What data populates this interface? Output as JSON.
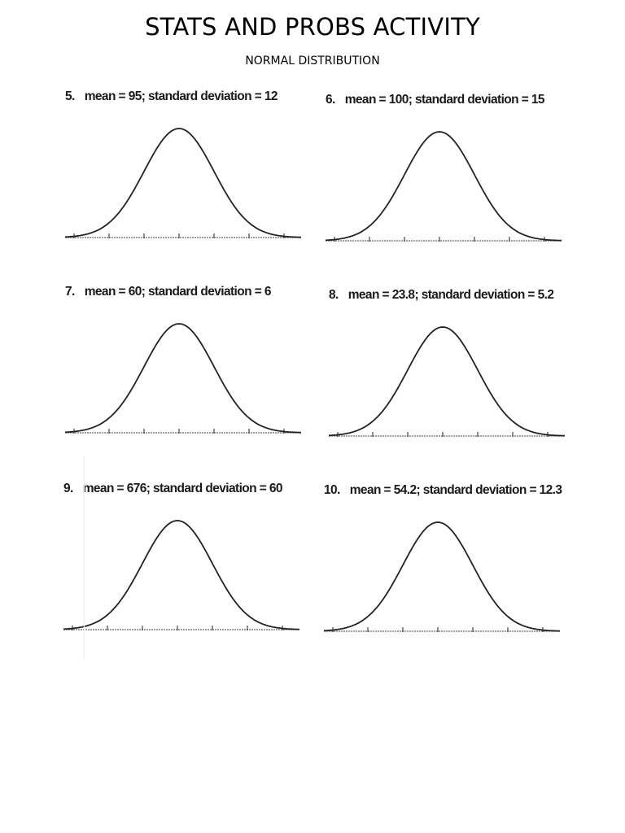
{
  "header": {
    "title": "STATS AND PROBS ACTIVITY",
    "subtitle": "NORMAL DISTRIBUTION"
  },
  "problems": [
    {
      "number": "5.",
      "text": "mean = 95; standard deviation = 12"
    },
    {
      "number": "6.",
      "text": "mean = 100; standard deviation = 15"
    },
    {
      "number": "7.",
      "text": "mean = 60; standard deviation = 6"
    },
    {
      "number": "8.",
      "text": "mean = 23.8; standard deviation = 5.2"
    },
    {
      "number": "9.",
      "text": "mean = 676; standard deviation = 60"
    },
    {
      "number": "10.",
      "text": "mean = 54.2; standard deviation = 12.3"
    }
  ]
}
